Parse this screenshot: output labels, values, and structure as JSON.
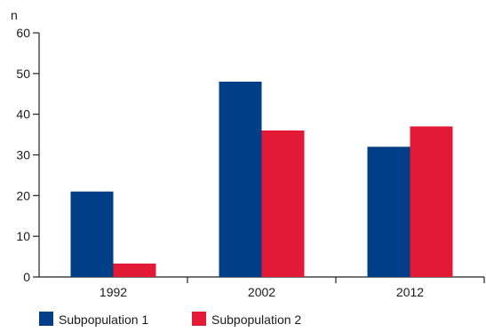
{
  "chart_data": {
    "type": "bar",
    "ylabel": "n",
    "ylim": [
      0,
      60
    ],
    "yticks": [
      0,
      10,
      20,
      30,
      40,
      50,
      60
    ],
    "categories": [
      "1992",
      "2002",
      "2012"
    ],
    "series": [
      {
        "name": "Subpopulation 1",
        "color": "#003f87",
        "values": [
          21,
          48,
          32
        ]
      },
      {
        "name": "Subpopulation 2",
        "color": "#e21a36",
        "values": [
          3.3,
          36,
          37
        ]
      }
    ],
    "legend_position": "bottom-left",
    "grid": false
  }
}
